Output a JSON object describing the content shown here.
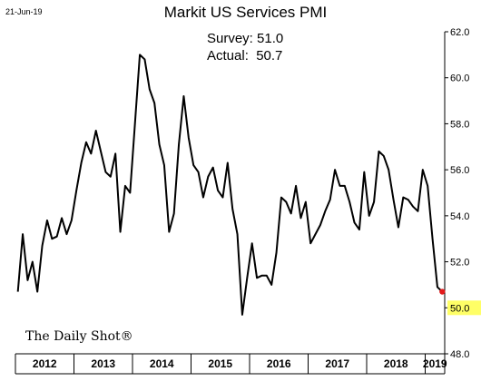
{
  "date_stamp": "21-Jun-19",
  "brand": "The Daily Shot®",
  "colors": {
    "line": "#000000",
    "latest_marker": "#e31a1c",
    "highlight": "#ffff66",
    "axis": "#000000"
  },
  "chart_data": {
    "type": "line",
    "title": "Markit US Services PMI",
    "xlabel": "",
    "ylabel": "",
    "ylim": [
      48,
      62
    ],
    "yticks": [
      "48.0",
      "50.0",
      "52.0",
      "54.0",
      "56.0",
      "58.0",
      "60.0",
      "62.0"
    ],
    "highlighted_tick": "50.0",
    "annotations": [
      {
        "key": "survey",
        "text": "Survey: 51.0"
      },
      {
        "key": "actual",
        "text": "Actual:  50.7"
      }
    ],
    "x_start": "2012-01",
    "x_end": "2019-06",
    "year_labels": [
      "2012",
      "2013",
      "2014",
      "2015",
      "2016",
      "2017",
      "2018",
      "2019"
    ],
    "grid": false,
    "series": [
      {
        "values": [
          50.7,
          53.2,
          51.2,
          52.0,
          50.7,
          52.7,
          53.8,
          53.0,
          53.1,
          53.9,
          53.2,
          53.8,
          55.1,
          56.3,
          57.2,
          56.7,
          57.7,
          56.8,
          55.9,
          55.7,
          56.7,
          53.3,
          55.3,
          55.0,
          58.0,
          61.0,
          60.8,
          59.5,
          58.9,
          57.1,
          56.2,
          53.3,
          54.1,
          57.1,
          59.2,
          57.4,
          56.2,
          55.9,
          54.8,
          55.7,
          56.1,
          55.1,
          54.8,
          56.3,
          54.3,
          53.2,
          49.7,
          51.3,
          52.8,
          51.3,
          51.4,
          51.4,
          51.0,
          52.4,
          54.8,
          54.6,
          54.1,
          55.3,
          53.9,
          54.6,
          52.8,
          53.2,
          53.6,
          54.2,
          54.7,
          56.0,
          55.3,
          55.3,
          54.6,
          53.7,
          53.4,
          55.9,
          54.0,
          54.6,
          56.8,
          56.6,
          56.0,
          54.7,
          53.5,
          54.8,
          54.7,
          54.4,
          54.2,
          56.0,
          55.3,
          53.0,
          50.9,
          50.7
        ]
      }
    ],
    "latest_point_marker": true
  }
}
